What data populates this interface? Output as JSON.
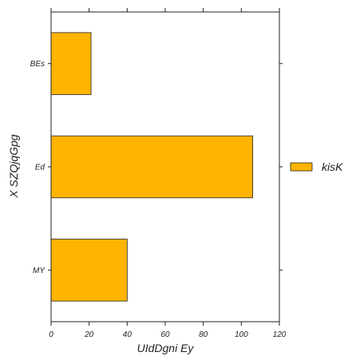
{
  "chart_data": {
    "type": "bar",
    "orientation": "horizontal",
    "categories": [
      "MY",
      "Ed",
      "BEs"
    ],
    "series": [
      {
        "name": "kisK",
        "values": [
          40,
          106,
          21
        ],
        "color": "#ffb400"
      }
    ],
    "xlabel": "UIdDgni Ey",
    "ylabel": "X SZQjqGpg",
    "xlim": [
      0,
      120
    ],
    "xticks": [
      0,
      20,
      40,
      60,
      80,
      100,
      120
    ],
    "grid": false,
    "legend": "right"
  }
}
